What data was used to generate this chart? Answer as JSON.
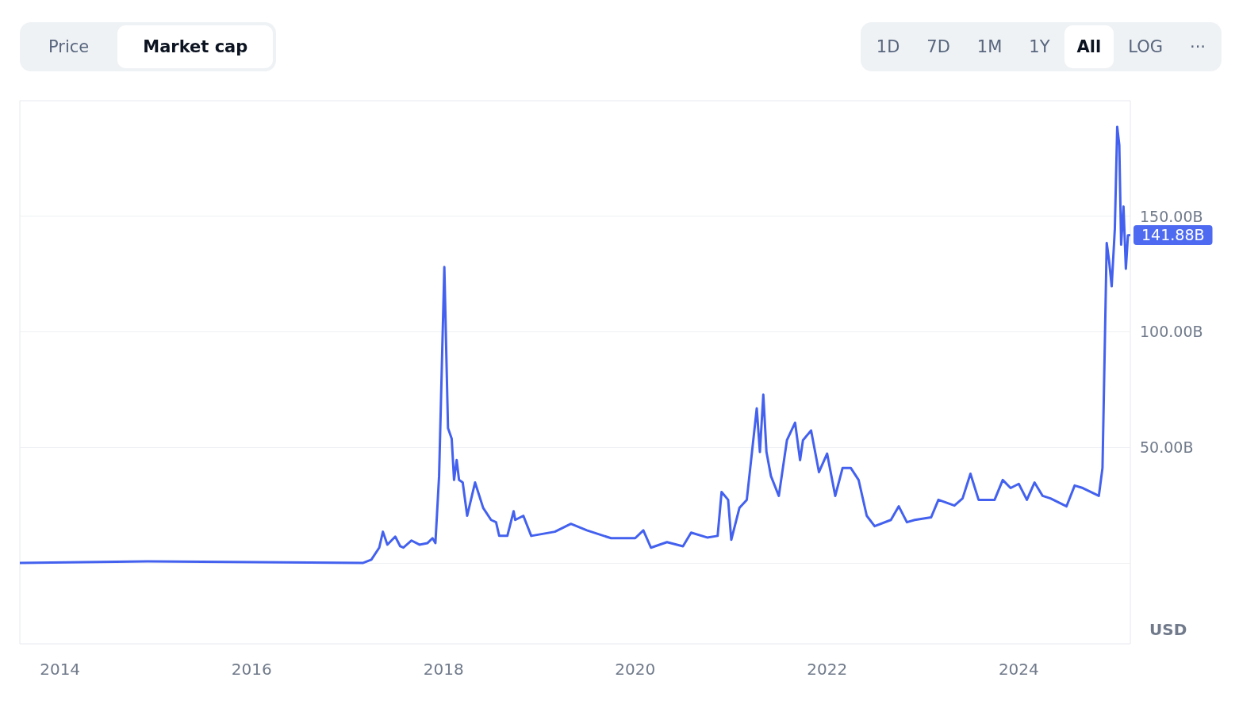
{
  "chart_data": {
    "type": "line",
    "ylabel": "USD",
    "color": "#4361ee",
    "x": [
      "2013-08",
      "2014-12",
      "2017-03",
      "2017-04",
      "2017-05-01",
      "2017-05-15",
      "2017-06",
      "2017-07-01",
      "2017-07-20",
      "2017-08",
      "2017-09",
      "2017-10",
      "2017-11-01",
      "2017-11-20",
      "2017-12-01",
      "2017-12-15",
      "2018-01-04",
      "2018-01-18",
      "2018-02-01",
      "2018-02-10",
      "2018-02-20",
      "2018-03-01",
      "2018-03-15",
      "2018-04",
      "2018-05",
      "2018-06",
      "2018-07-01",
      "2018-07-20",
      "2018-08",
      "2018-09",
      "2018-09-25",
      "2018-10",
      "2018-11",
      "2018-12",
      "2019-03",
      "2019-05",
      "2019-07",
      "2019-10",
      "2020-01",
      "2020-02",
      "2020-03",
      "2020-05",
      "2020-07",
      "2020-08",
      "2020-10",
      "2020-11-10",
      "2020-11-25",
      "2020-12-20",
      "2021-01",
      "2021-02",
      "2021-03",
      "2021-04-08",
      "2021-04-20",
      "2021-05-03",
      "2021-05-15",
      "2021-06",
      "2021-07",
      "2021-08",
      "2021-09-01",
      "2021-09-20",
      "2021-10",
      "2021-11",
      "2021-12",
      "2022-01",
      "2022-02",
      "2022-03",
      "2022-04",
      "2022-05",
      "2022-06",
      "2022-07",
      "2022-09",
      "2022-10",
      "2022-11",
      "2022-12",
      "2023-02",
      "2023-03",
      "2023-05",
      "2023-06",
      "2023-07",
      "2023-08",
      "2023-10",
      "2023-11",
      "2023-12",
      "2024-01",
      "2024-02",
      "2024-03",
      "2024-04",
      "2024-05",
      "2024-07",
      "2024-08",
      "2024-09",
      "2024-11-01",
      "2024-11-15",
      "2024-12-01",
      "2024-12-10",
      "2024-12-20",
      "2025-01-01",
      "2025-01-10",
      "2025-01-18",
      "2025-01-25",
      "2025-02-03",
      "2025-02-12",
      "2025-02-20",
      "2025-03-01"
    ],
    "values": [
      0,
      0.7,
      0,
      1.4,
      6.6,
      13.5,
      7.9,
      11.4,
      7.2,
      6.6,
      9.7,
      7.9,
      8.6,
      10.7,
      8.6,
      37.6,
      128,
      58.3,
      53.8,
      35.9,
      44.5,
      35.9,
      34.8,
      20.4,
      34.8,
      23.8,
      18.6,
      17.6,
      11.7,
      11.7,
      22.4,
      18.6,
      20.4,
      11.7,
      13.5,
      16.9,
      14.1,
      10.7,
      10.7,
      14.1,
      6.6,
      9,
      7.2,
      13.1,
      11,
      11.7,
      30.7,
      27.3,
      10,
      23.8,
      27.3,
      66.9,
      48,
      72.8,
      48,
      37.6,
      29,
      53.1,
      60.7,
      44.5,
      53.1,
      57.3,
      39.3,
      47.3,
      29,
      41.1,
      41.1,
      35.9,
      20.4,
      15.9,
      18.6,
      24.5,
      17.6,
      18.6,
      19.7,
      27.3,
      24.8,
      27.9,
      38.6,
      27.3,
      27.3,
      35.9,
      32.4,
      34.2,
      27.3,
      34.8,
      29,
      27.9,
      24.5,
      33.5,
      32.4,
      29,
      41.1,
      138.4,
      130.8,
      119.7,
      144.6,
      188.7,
      180.8,
      137.7,
      154.2,
      127.3,
      141.8,
      141.88
    ],
    "xlim": [
      "2013-08",
      "2025-03"
    ],
    "xticks": [
      {
        "value": "2014",
        "label": "2014"
      },
      {
        "value": "2016",
        "label": "2016"
      },
      {
        "value": "2018",
        "label": "2018"
      },
      {
        "value": "2020",
        "label": "2020"
      },
      {
        "value": "2022",
        "label": "2022"
      },
      {
        "value": "2024",
        "label": "2024"
      }
    ],
    "ylim": [
      -35,
      200
    ],
    "yticks": [
      {
        "value": 0,
        "label": null
      },
      {
        "value": 50,
        "label": "50.00B"
      },
      {
        "value": 100,
        "label": "100.00B"
      },
      {
        "value": 150,
        "label": "150.00B"
      }
    ],
    "grid": "y",
    "marker": "none",
    "line_style": "solid",
    "annotations": [
      "Price",
      "Market cap",
      "1D",
      "7D",
      "1M",
      "1Y",
      "All",
      "LOG",
      "···",
      {
        "text": "141.88B",
        "x": "2025-03-01",
        "y": 141.88
      }
    ]
  }
}
